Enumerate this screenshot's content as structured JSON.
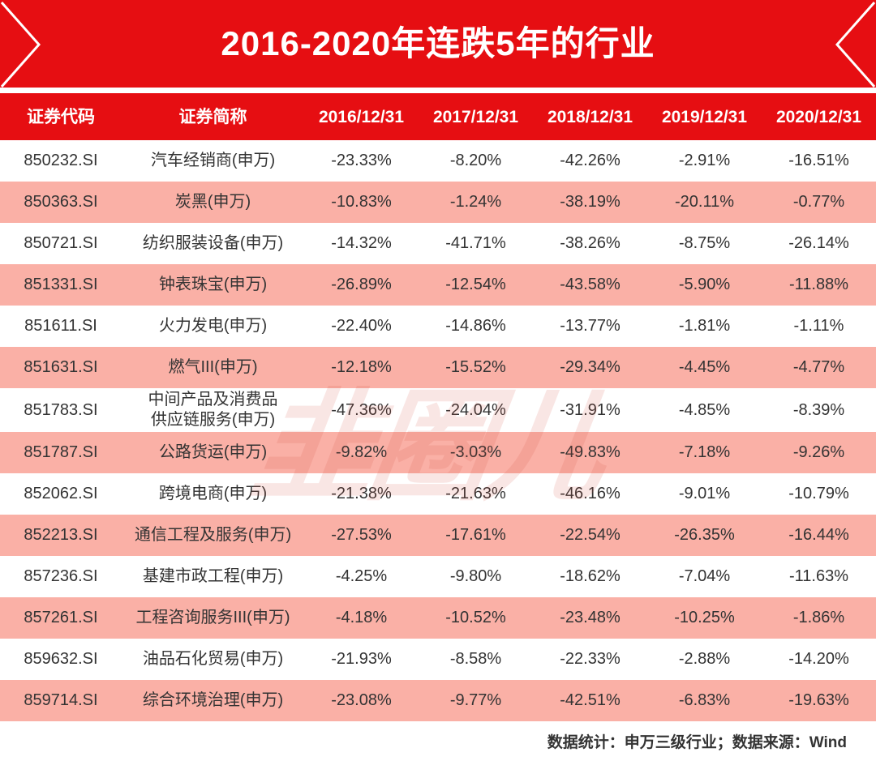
{
  "banner": {
    "title": "2016-2020年连跌5年的行业"
  },
  "chart_data": {
    "type": "table",
    "title": "2016-2020年连跌5年的行业",
    "columns": [
      "证券代码",
      "证券简称",
      "2016/12/31",
      "2017/12/31",
      "2018/12/31",
      "2019/12/31",
      "2020/12/31"
    ],
    "rows": [
      {
        "code": "850232.SI",
        "name": "汽车经销商(申万)",
        "values": [
          "-23.33%",
          "-8.20%",
          "-42.26%",
          "-2.91%",
          "-16.51%"
        ]
      },
      {
        "code": "850363.SI",
        "name": "炭黑(申万)",
        "values": [
          "-10.83%",
          "-1.24%",
          "-38.19%",
          "-20.11%",
          "-0.77%"
        ]
      },
      {
        "code": "850721.SI",
        "name": "纺织服装设备(申万)",
        "values": [
          "-14.32%",
          "-41.71%",
          "-38.26%",
          "-8.75%",
          "-26.14%"
        ]
      },
      {
        "code": "851331.SI",
        "name": "钟表珠宝(申万)",
        "values": [
          "-26.89%",
          "-12.54%",
          "-43.58%",
          "-5.90%",
          "-11.88%"
        ]
      },
      {
        "code": "851611.SI",
        "name": "火力发电(申万)",
        "values": [
          "-22.40%",
          "-14.86%",
          "-13.77%",
          "-1.81%",
          "-1.11%"
        ]
      },
      {
        "code": "851631.SI",
        "name": "燃气III(申万)",
        "values": [
          "-12.18%",
          "-15.52%",
          "-29.34%",
          "-4.45%",
          "-4.77%"
        ]
      },
      {
        "code": "851783.SI",
        "name": "中间产品及消费品\n供应链服务(申万)",
        "values": [
          "-47.36%",
          "-24.04%",
          "-31.91%",
          "-4.85%",
          "-8.39%"
        ]
      },
      {
        "code": "851787.SI",
        "name": "公路货运(申万)",
        "values": [
          "-9.82%",
          "-3.03%",
          "-49.83%",
          "-7.18%",
          "-9.26%"
        ]
      },
      {
        "code": "852062.SI",
        "name": "跨境电商(申万)",
        "values": [
          "-21.38%",
          "-21.63%",
          "-46.16%",
          "-9.01%",
          "-10.79%"
        ]
      },
      {
        "code": "852213.SI",
        "name": "通信工程及服务(申万)",
        "values": [
          "-27.53%",
          "-17.61%",
          "-22.54%",
          "-26.35%",
          "-16.44%"
        ]
      },
      {
        "code": "857236.SI",
        "name": "基建市政工程(申万)",
        "values": [
          "-4.25%",
          "-9.80%",
          "-18.62%",
          "-7.04%",
          "-11.63%"
        ]
      },
      {
        "code": "857261.SI",
        "name": "工程咨询服务III(申万)",
        "values": [
          "-4.18%",
          "-10.52%",
          "-23.48%",
          "-10.25%",
          "-1.86%"
        ]
      },
      {
        "code": "859632.SI",
        "name": "油品石化贸易(申万)",
        "values": [
          "-21.93%",
          "-8.58%",
          "-22.33%",
          "-2.88%",
          "-14.20%"
        ]
      },
      {
        "code": "859714.SI",
        "name": "综合环境治理(申万)",
        "values": [
          "-23.08%",
          "-9.77%",
          "-42.51%",
          "-6.83%",
          "-19.63%"
        ]
      }
    ]
  },
  "watermark": {
    "text": "韭圈儿"
  },
  "footer": {
    "note": "数据统计：申万三级行业；数据来源：Wind"
  },
  "colors": {
    "red": "#e60e12",
    "pink": "#fab0a6",
    "text_dark": "#333333",
    "banner_text": "#ffffff"
  }
}
